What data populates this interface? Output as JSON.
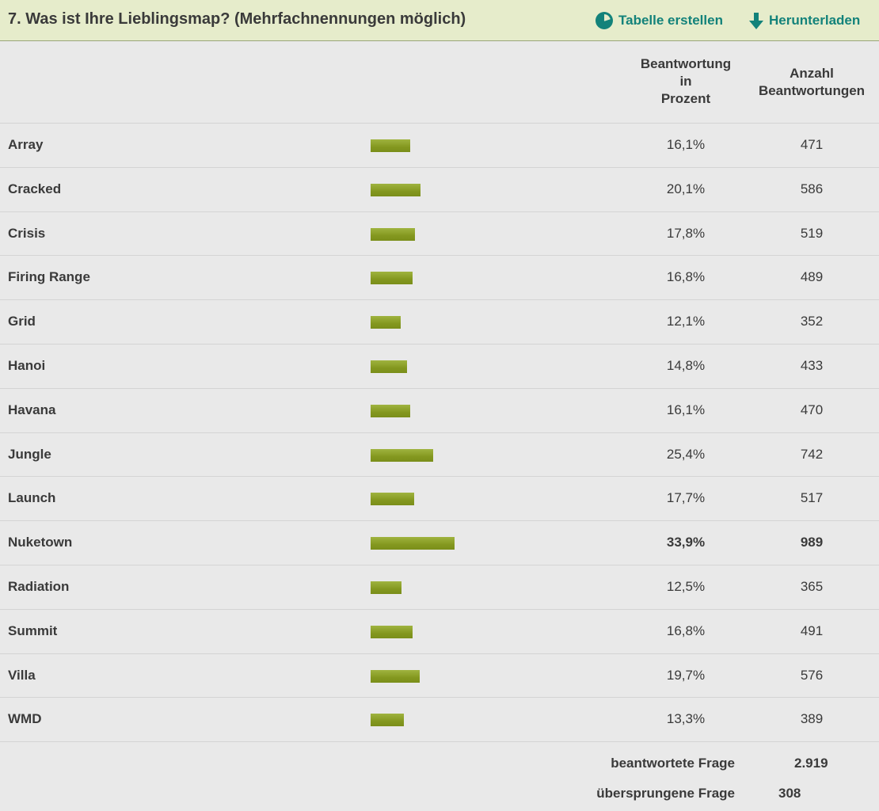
{
  "header": {
    "title": "7. Was ist Ihre Lieblingsmap? (Mehrfachnennungen möglich)",
    "create_table_label": "Tabelle erstellen",
    "download_label": "Herunterladen",
    "create_table_icon": "pie-chart-icon",
    "download_icon": "arrow-down-icon",
    "accent_color": "#13827a"
  },
  "columns": {
    "percent": "Beantwortung\nin\nProzent",
    "count": "Anzahl\nBeantwortungen"
  },
  "bar_color": "#8a9e25",
  "chart_data": {
    "type": "bar",
    "categories": [
      "Array",
      "Cracked",
      "Crisis",
      "Firing Range",
      "Grid",
      "Hanoi",
      "Havana",
      "Jungle",
      "Launch",
      "Nuketown",
      "Radiation",
      "Summit",
      "Villa",
      "WMD"
    ],
    "percent_labels": [
      "16,1%",
      "20,1%",
      "17,8%",
      "16,8%",
      "12,1%",
      "14,8%",
      "16,1%",
      "25,4%",
      "17,7%",
      "33,9%",
      "12,5%",
      "16,8%",
      "19,7%",
      "13,3%"
    ],
    "values": [
      16.1,
      20.1,
      17.8,
      16.8,
      12.1,
      14.8,
      16.1,
      25.4,
      17.7,
      33.9,
      12.5,
      16.8,
      19.7,
      13.3
    ],
    "counts": [
      "471",
      "586",
      "519",
      "489",
      "352",
      "433",
      "470",
      "742",
      "517",
      "989",
      "365",
      "491",
      "576",
      "389"
    ],
    "highlighted": "Nuketown"
  },
  "summary": {
    "answered_label": "beantwortete Frage",
    "answered_value": "2.919",
    "skipped_label": "übersprungene Frage",
    "skipped_value": "308"
  }
}
